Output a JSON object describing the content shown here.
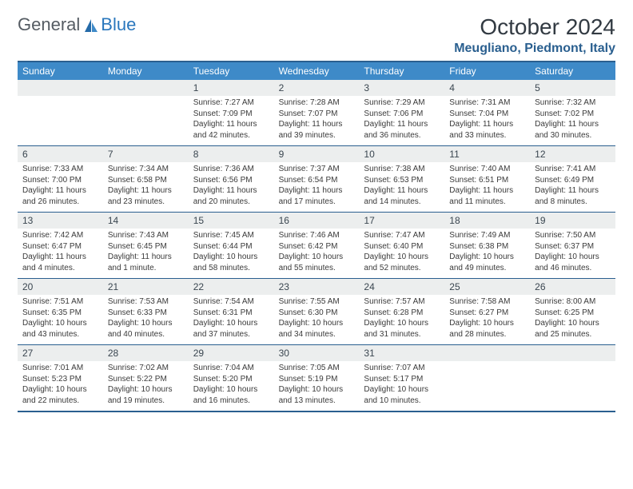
{
  "brand": {
    "part1": "General",
    "part2": "Blue"
  },
  "title": "October 2024",
  "location": "Meugliano, Piedmont, Italy",
  "colors": {
    "header_bg": "#3e8ac8",
    "border": "#2a5f8f",
    "daynum_bg": "#eceeee",
    "location_text": "#2a5f8f"
  },
  "weekdays": [
    "Sunday",
    "Monday",
    "Tuesday",
    "Wednesday",
    "Thursday",
    "Friday",
    "Saturday"
  ],
  "weeks": [
    [
      null,
      null,
      {
        "n": "1",
        "sunrise": "7:27 AM",
        "sunset": "7:09 PM",
        "daylight": "11 hours and 42 minutes."
      },
      {
        "n": "2",
        "sunrise": "7:28 AM",
        "sunset": "7:07 PM",
        "daylight": "11 hours and 39 minutes."
      },
      {
        "n": "3",
        "sunrise": "7:29 AM",
        "sunset": "7:06 PM",
        "daylight": "11 hours and 36 minutes."
      },
      {
        "n": "4",
        "sunrise": "7:31 AM",
        "sunset": "7:04 PM",
        "daylight": "11 hours and 33 minutes."
      },
      {
        "n": "5",
        "sunrise": "7:32 AM",
        "sunset": "7:02 PM",
        "daylight": "11 hours and 30 minutes."
      }
    ],
    [
      {
        "n": "6",
        "sunrise": "7:33 AM",
        "sunset": "7:00 PM",
        "daylight": "11 hours and 26 minutes."
      },
      {
        "n": "7",
        "sunrise": "7:34 AM",
        "sunset": "6:58 PM",
        "daylight": "11 hours and 23 minutes."
      },
      {
        "n": "8",
        "sunrise": "7:36 AM",
        "sunset": "6:56 PM",
        "daylight": "11 hours and 20 minutes."
      },
      {
        "n": "9",
        "sunrise": "7:37 AM",
        "sunset": "6:54 PM",
        "daylight": "11 hours and 17 minutes."
      },
      {
        "n": "10",
        "sunrise": "7:38 AM",
        "sunset": "6:53 PM",
        "daylight": "11 hours and 14 minutes."
      },
      {
        "n": "11",
        "sunrise": "7:40 AM",
        "sunset": "6:51 PM",
        "daylight": "11 hours and 11 minutes."
      },
      {
        "n": "12",
        "sunrise": "7:41 AM",
        "sunset": "6:49 PM",
        "daylight": "11 hours and 8 minutes."
      }
    ],
    [
      {
        "n": "13",
        "sunrise": "7:42 AM",
        "sunset": "6:47 PM",
        "daylight": "11 hours and 4 minutes."
      },
      {
        "n": "14",
        "sunrise": "7:43 AM",
        "sunset": "6:45 PM",
        "daylight": "11 hours and 1 minute."
      },
      {
        "n": "15",
        "sunrise": "7:45 AM",
        "sunset": "6:44 PM",
        "daylight": "10 hours and 58 minutes."
      },
      {
        "n": "16",
        "sunrise": "7:46 AM",
        "sunset": "6:42 PM",
        "daylight": "10 hours and 55 minutes."
      },
      {
        "n": "17",
        "sunrise": "7:47 AM",
        "sunset": "6:40 PM",
        "daylight": "10 hours and 52 minutes."
      },
      {
        "n": "18",
        "sunrise": "7:49 AM",
        "sunset": "6:38 PM",
        "daylight": "10 hours and 49 minutes."
      },
      {
        "n": "19",
        "sunrise": "7:50 AM",
        "sunset": "6:37 PM",
        "daylight": "10 hours and 46 minutes."
      }
    ],
    [
      {
        "n": "20",
        "sunrise": "7:51 AM",
        "sunset": "6:35 PM",
        "daylight": "10 hours and 43 minutes."
      },
      {
        "n": "21",
        "sunrise": "7:53 AM",
        "sunset": "6:33 PM",
        "daylight": "10 hours and 40 minutes."
      },
      {
        "n": "22",
        "sunrise": "7:54 AM",
        "sunset": "6:31 PM",
        "daylight": "10 hours and 37 minutes."
      },
      {
        "n": "23",
        "sunrise": "7:55 AM",
        "sunset": "6:30 PM",
        "daylight": "10 hours and 34 minutes."
      },
      {
        "n": "24",
        "sunrise": "7:57 AM",
        "sunset": "6:28 PM",
        "daylight": "10 hours and 31 minutes."
      },
      {
        "n": "25",
        "sunrise": "7:58 AM",
        "sunset": "6:27 PM",
        "daylight": "10 hours and 28 minutes."
      },
      {
        "n": "26",
        "sunrise": "8:00 AM",
        "sunset": "6:25 PM",
        "daylight": "10 hours and 25 minutes."
      }
    ],
    [
      {
        "n": "27",
        "sunrise": "7:01 AM",
        "sunset": "5:23 PM",
        "daylight": "10 hours and 22 minutes."
      },
      {
        "n": "28",
        "sunrise": "7:02 AM",
        "sunset": "5:22 PM",
        "daylight": "10 hours and 19 minutes."
      },
      {
        "n": "29",
        "sunrise": "7:04 AM",
        "sunset": "5:20 PM",
        "daylight": "10 hours and 16 minutes."
      },
      {
        "n": "30",
        "sunrise": "7:05 AM",
        "sunset": "5:19 PM",
        "daylight": "10 hours and 13 minutes."
      },
      {
        "n": "31",
        "sunrise": "7:07 AM",
        "sunset": "5:17 PM",
        "daylight": "10 hours and 10 minutes."
      },
      null,
      null
    ]
  ]
}
